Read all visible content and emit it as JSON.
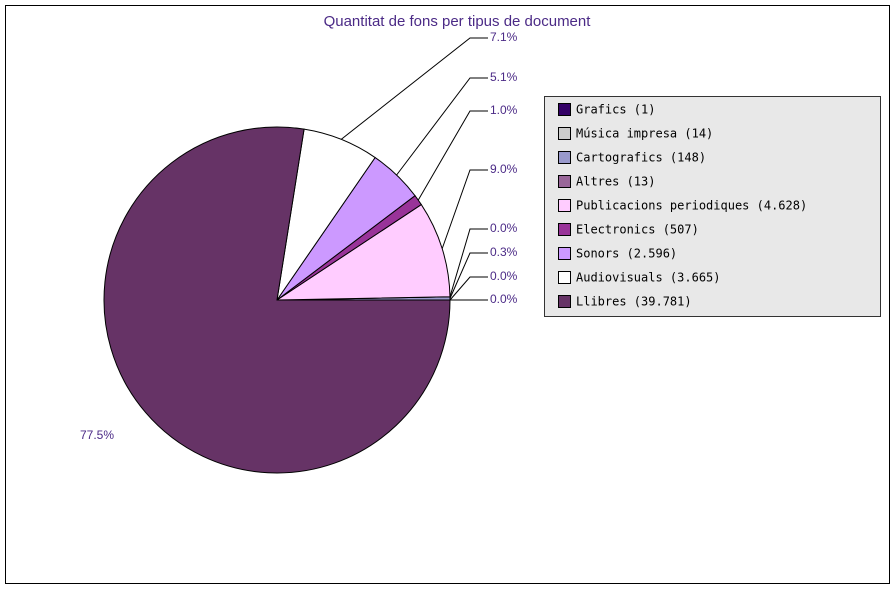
{
  "chart_data": {
    "type": "pie",
    "title": "Quantitat de fons per tipus de document",
    "categories": [
      "Grafics (1)",
      "Música impresa (14)",
      "Cartografics (148)",
      "Altres (13)",
      "Publicacions periodiques (4.628)",
      "Electronics (507)",
      "Sonors (2.596)",
      "Audiovisuals (3.665)",
      "Llibres (39.781)"
    ],
    "values": [
      0.0,
      0.0,
      0.3,
      0.0,
      9.0,
      1.0,
      5.1,
      7.1,
      77.5
    ],
    "value_labels": [
      "0.0%",
      "0.0%",
      "0.3%",
      "0.0%",
      "9.0%",
      "1.0%",
      "5.1%",
      "7.1%",
      "77.5%"
    ],
    "colors": [
      "#330066",
      "#cccccc",
      "#9999cc",
      "#996699",
      "#ffccff",
      "#993399",
      "#cc99ff",
      "#ffffff",
      "#663366"
    ],
    "legend": "right"
  }
}
